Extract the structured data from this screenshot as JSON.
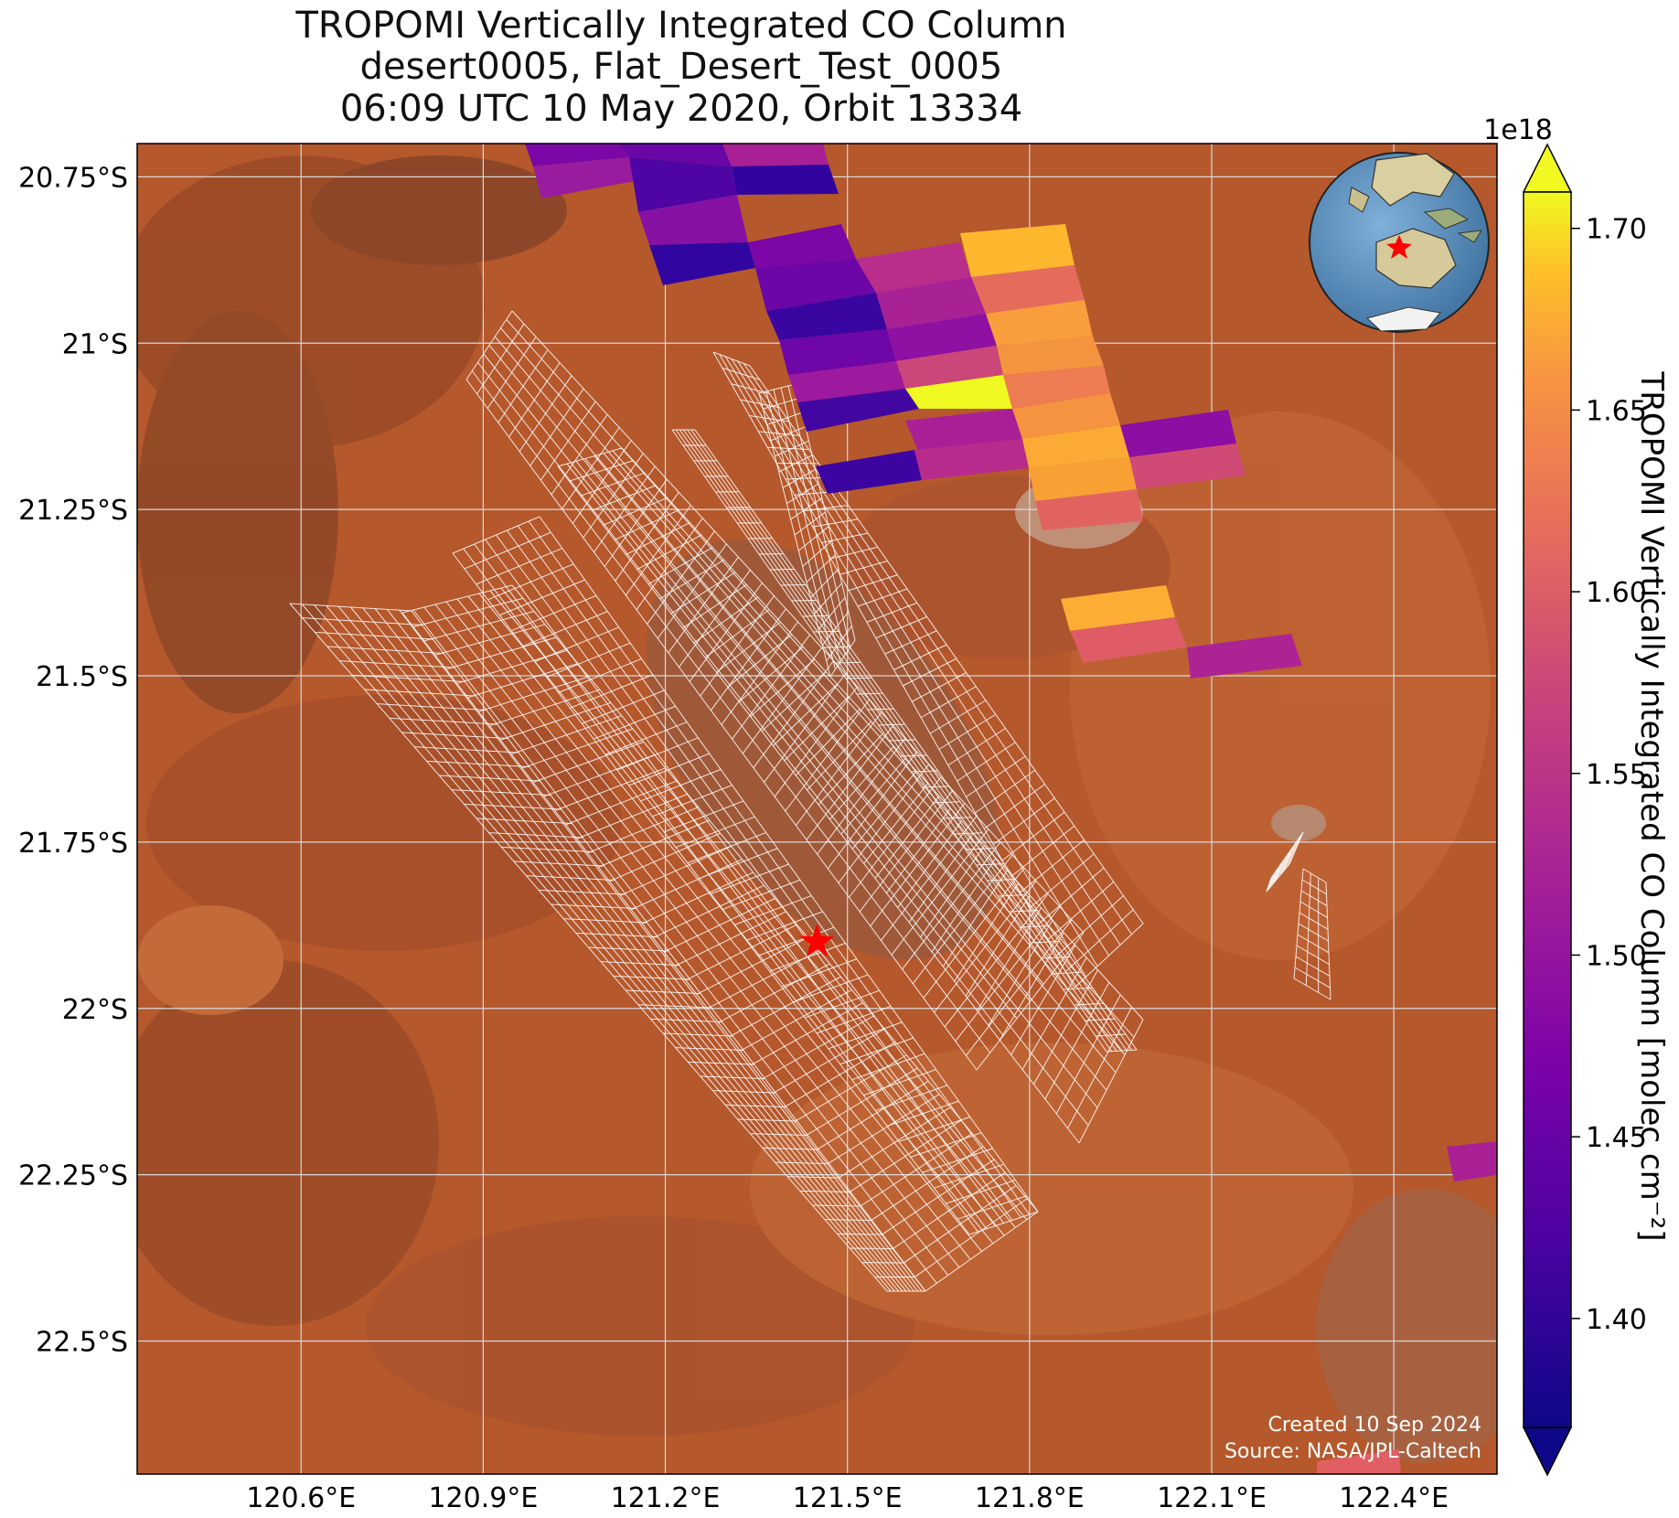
{
  "title": {
    "line1": "TROPOMI Vertically Integrated CO Column",
    "line2": "desert0005, Flat_Desert_Test_0005",
    "line3": "06:09 UTC 10 May 2020, Orbit 13334"
  },
  "map": {
    "lon_ticks": [
      "120.6°E",
      "120.9°E",
      "121.2°E",
      "121.5°E",
      "121.8°E",
      "122.1°E",
      "122.4°E"
    ],
    "lat_ticks": [
      "20.75°S",
      "21°S",
      "21.25°S",
      "21.5°S",
      "21.75°S",
      "22°S",
      "22.25°S",
      "22.5°S"
    ],
    "lon_values": [
      120.6,
      120.9,
      121.2,
      121.5,
      121.8,
      122.1,
      122.4
    ],
    "lat_values": [
      -20.75,
      -21.0,
      -21.25,
      -21.5,
      -21.75,
      -22.0,
      -22.25,
      -22.5
    ],
    "extent": {
      "lon": [
        120.33,
        122.57
      ],
      "lat": [
        -22.7,
        -20.7
      ]
    },
    "site_marker": {
      "lon": 121.45,
      "lat": -21.9,
      "symbol": "star",
      "color": "#ff0000"
    },
    "background": "satellite imagery",
    "footprint_grid_color": "#ffffff"
  },
  "colorbar": {
    "label": "TROPOMI Vertically Integrated CO Column [molec cm⁻²]",
    "exponent": "1e18",
    "ticks": [
      "1.40",
      "1.45",
      "1.50",
      "1.55",
      "1.60",
      "1.65",
      "1.70"
    ],
    "tick_values": [
      1.4,
      1.45,
      1.5,
      1.55,
      1.6,
      1.65,
      1.7
    ],
    "range": [
      1.37,
      1.71
    ],
    "colormap": "plasma",
    "extend": "both"
  },
  "footer": {
    "created": "Created 10 Sep 2024",
    "source": "Source: NASA/JPL-Caltech"
  },
  "inset_globe": {
    "ocean_color": "#5b8fbf",
    "marker_color": "#ff0000"
  }
}
